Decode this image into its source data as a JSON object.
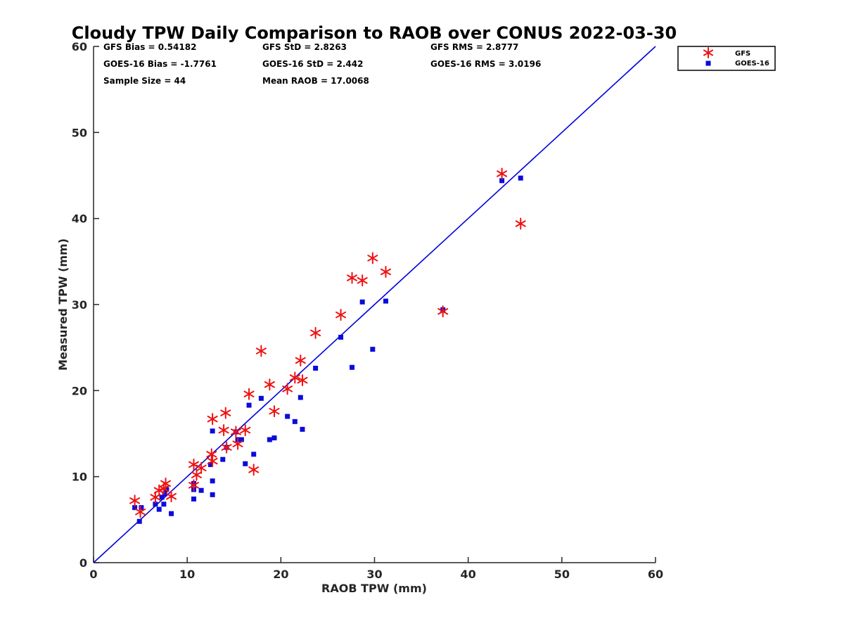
{
  "chart_data": {
    "type": "scatter",
    "title": "Cloudy TPW Daily Comparison to RAOB over CONUS 2022-03-30",
    "xlabel": "RAOB TPW (mm)",
    "ylabel": "Measured TPW (mm)",
    "xlim": [
      0,
      60
    ],
    "ylim": [
      0,
      60
    ],
    "xticks": [
      "0",
      "10",
      "20",
      "30",
      "40",
      "50",
      "60"
    ],
    "yticks": [
      "0",
      "10",
      "20",
      "30",
      "40",
      "50",
      "60"
    ],
    "grid": false,
    "legend_position": "top-right, outside plot",
    "stats": {
      "gfs_bias": "GFS Bias = 0.54182",
      "goes_bias": "GOES-16 Bias = -1.7761",
      "sample_size": "Sample Size = 44",
      "gfs_std": "GFS StD = 2.8263",
      "goes_std": "GOES-16 StD = 2.442",
      "mean_raob": "Mean RAOB = 17.0068",
      "gfs_rms": "GFS RMS = 2.8777",
      "goes_rms": "GOES-16 RMS = 3.0196"
    },
    "reference_line": {
      "x": [
        0,
        60
      ],
      "y": [
        0,
        60
      ],
      "color": "#0000dd"
    },
    "series": [
      {
        "name": "GFS",
        "marker": "asterisk",
        "color": "#ee1111",
        "points": [
          [
            4.4,
            7.2
          ],
          [
            5.0,
            5.9
          ],
          [
            6.6,
            7.6
          ],
          [
            7.0,
            8.4
          ],
          [
            7.5,
            8.6
          ],
          [
            7.7,
            9.2
          ],
          [
            8.3,
            7.7
          ],
          [
            10.7,
            11.4
          ],
          [
            10.7,
            9.0
          ],
          [
            11.0,
            10.2
          ],
          [
            11.5,
            11.0
          ],
          [
            12.6,
            12.6
          ],
          [
            12.7,
            11.8
          ],
          [
            12.7,
            16.7
          ],
          [
            13.9,
            15.4
          ],
          [
            14.1,
            17.4
          ],
          [
            14.2,
            13.4
          ],
          [
            15.2,
            15.2
          ],
          [
            15.4,
            13.8
          ],
          [
            16.2,
            15.4
          ],
          [
            16.6,
            19.6
          ],
          [
            17.1,
            10.8
          ],
          [
            17.9,
            24.6
          ],
          [
            18.8,
            20.7
          ],
          [
            19.3,
            17.6
          ],
          [
            20.7,
            20.2
          ],
          [
            21.5,
            21.5
          ],
          [
            22.1,
            23.5
          ],
          [
            22.3,
            21.2
          ],
          [
            23.7,
            26.7
          ],
          [
            26.4,
            28.8
          ],
          [
            27.6,
            33.1
          ],
          [
            28.7,
            32.8
          ],
          [
            29.8,
            35.4
          ],
          [
            31.2,
            33.8
          ],
          [
            37.3,
            29.2
          ],
          [
            43.6,
            45.2
          ],
          [
            45.6,
            39.4
          ]
        ]
      },
      {
        "name": "GOES-16",
        "marker": "square",
        "color": "#0b0bdd",
        "points": [
          [
            4.4,
            6.4
          ],
          [
            4.9,
            4.8
          ],
          [
            5.1,
            6.4
          ],
          [
            6.6,
            6.8
          ],
          [
            7.0,
            6.2
          ],
          [
            7.3,
            7.6
          ],
          [
            7.5,
            6.8
          ],
          [
            7.6,
            8.0
          ],
          [
            7.8,
            8.5
          ],
          [
            8.3,
            5.7
          ],
          [
            10.7,
            9.2
          ],
          [
            10.7,
            8.5
          ],
          [
            10.7,
            7.4
          ],
          [
            11.5,
            8.4
          ],
          [
            12.5,
            11.4
          ],
          [
            12.7,
            15.3
          ],
          [
            12.7,
            9.5
          ],
          [
            12.7,
            7.9
          ],
          [
            13.8,
            12.0
          ],
          [
            14.2,
            13.4
          ],
          [
            15.2,
            15.2
          ],
          [
            15.4,
            14.3
          ],
          [
            15.8,
            14.3
          ],
          [
            16.2,
            11.5
          ],
          [
            16.6,
            18.3
          ],
          [
            17.1,
            12.6
          ],
          [
            17.9,
            19.1
          ],
          [
            18.8,
            14.3
          ],
          [
            19.3,
            14.5
          ],
          [
            20.7,
            17.0
          ],
          [
            21.5,
            16.4
          ],
          [
            22.1,
            19.2
          ],
          [
            22.3,
            15.5
          ],
          [
            23.7,
            22.6
          ],
          [
            26.4,
            26.2
          ],
          [
            27.6,
            22.7
          ],
          [
            28.7,
            30.3
          ],
          [
            29.8,
            24.8
          ],
          [
            31.2,
            30.4
          ],
          [
            37.3,
            29.4
          ],
          [
            43.6,
            44.4
          ],
          [
            45.6,
            44.7
          ]
        ]
      }
    ]
  }
}
